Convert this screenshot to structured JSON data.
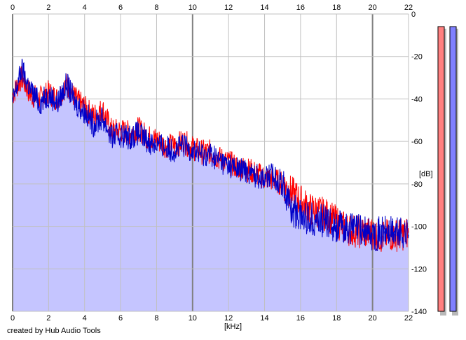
{
  "footer": {
    "credit": "created by Hub Audio Tools"
  },
  "colors": {
    "background": "#ffffff",
    "fill": "#c5c5ff",
    "grid_minor": "#c0c0c0",
    "grid_major": "#808080",
    "left_channel": "#ff0000",
    "right_channel": "#0000c8",
    "meter_left": "#ff8080",
    "meter_right": "#8080ff",
    "meter_shadow": "#b8b8b8"
  },
  "chart_data": {
    "type": "line",
    "xlabel": "[kHz]",
    "ylabel": "[dB]",
    "xlim": [
      0,
      22
    ],
    "ylim": [
      -140,
      0
    ],
    "x_ticks": [
      "0",
      "2",
      "4",
      "6",
      "8",
      "10",
      "12",
      "14",
      "16",
      "18",
      "20",
      "22"
    ],
    "y_ticks": [
      "0",
      "-20",
      "-40",
      "-60",
      "-80",
      "-100",
      "-120",
      "-140"
    ],
    "grid": true,
    "series": [
      {
        "color": "#ff0000",
        "x": [
          0,
          0.5,
          1,
          1.5,
          2,
          2.5,
          3,
          3.5,
          4,
          4.5,
          5,
          5.5,
          6,
          6.5,
          7,
          7.5,
          8,
          8.5,
          9,
          9.5,
          10,
          10.5,
          11,
          11.5,
          12,
          12.5,
          13,
          13.5,
          14,
          14.5,
          15,
          15.5,
          16,
          16.5,
          17,
          17.5,
          18,
          18.5,
          19,
          19.5,
          20,
          20.5,
          21,
          21.5,
          22
        ],
        "y": [
          -38,
          -30,
          -38,
          -40,
          -37,
          -40,
          -33,
          -40,
          -44,
          -48,
          -45,
          -55,
          -55,
          -56,
          -54,
          -58,
          -59,
          -62,
          -62,
          -60,
          -63,
          -65,
          -65,
          -68,
          -70,
          -72,
          -73,
          -75,
          -77,
          -78,
          -80,
          -84,
          -88,
          -92,
          -93,
          -95,
          -98,
          -101,
          -102,
          -103,
          -103,
          -105,
          -104,
          -104,
          -103
        ]
      },
      {
        "color": "#0000c8",
        "x": [
          0,
          0.5,
          1,
          1.5,
          2,
          2.5,
          3,
          3.5,
          4,
          4.5,
          5,
          5.5,
          6,
          6.5,
          7,
          7.5,
          8,
          8.5,
          9,
          9.5,
          10,
          10.5,
          11,
          11.5,
          12,
          12.5,
          13,
          13.5,
          14,
          14.5,
          15,
          15.5,
          16,
          16.5,
          17,
          17.5,
          18,
          18.5,
          19,
          19.5,
          20,
          20.5,
          21,
          21.5,
          22
        ],
        "y": [
          -42,
          -26,
          -36,
          -42,
          -38,
          -42,
          -33,
          -42,
          -46,
          -52,
          -49,
          -58,
          -57,
          -58,
          -56,
          -60,
          -61,
          -63,
          -64,
          -62,
          -64,
          -66,
          -66,
          -69,
          -71,
          -73,
          -74,
          -76,
          -77,
          -76,
          -80,
          -92,
          -95,
          -96,
          -97,
          -98,
          -100,
          -101,
          -101,
          -102,
          -104,
          -103,
          -103,
          -103,
          -104
        ]
      }
    ]
  }
}
